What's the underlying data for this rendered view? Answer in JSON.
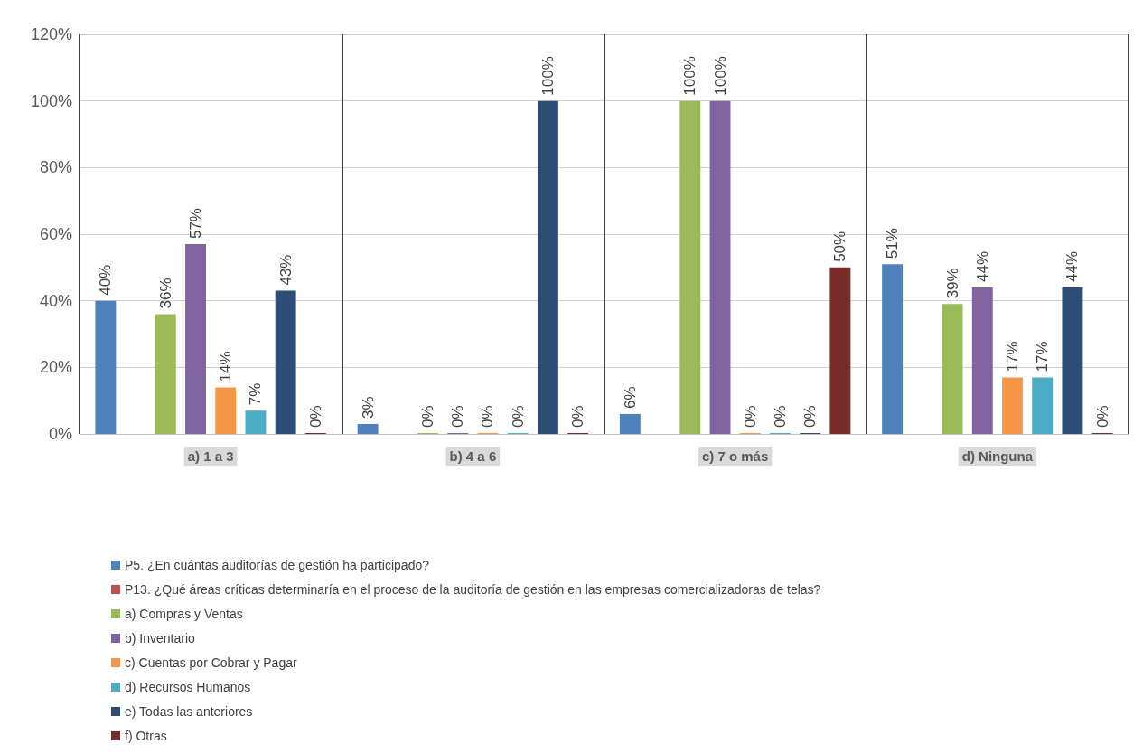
{
  "chart_data": {
    "type": "bar",
    "categories": [
      "a) 1 a 3",
      "b) 4 a 6",
      "c) 7 o más",
      "d) Ninguna"
    ],
    "ylim": [
      0,
      120
    ],
    "yticks": [
      {
        "value": 0,
        "label": "0%"
      },
      {
        "value": 20,
        "label": "20%"
      },
      {
        "value": 40,
        "label": "40%"
      },
      {
        "value": 60,
        "label": "60%"
      },
      {
        "value": 80,
        "label": "80%"
      },
      {
        "value": 100,
        "label": "100%"
      },
      {
        "value": 120,
        "label": "120%"
      }
    ],
    "grid": true,
    "legend": "bottom",
    "series": [
      {
        "name": "P5. ¿En cuántas auditorías de gestión ha participado?",
        "color": "#4f81bd",
        "values": [
          40,
          3,
          6,
          51
        ],
        "value_labels": [
          "40%",
          "3%",
          "6%",
          "51%"
        ]
      },
      {
        "name": "P13. ¿Qué áreas críticas determinaría en el proceso de la auditoría de gestión en las empresas comercializadoras de telas?",
        "color": "#c0504d",
        "values": [
          null,
          null,
          null,
          null
        ],
        "value_labels": [
          null,
          null,
          null,
          null
        ]
      },
      {
        "name": "a) Compras y Ventas",
        "color": "#9bbb59",
        "values": [
          36,
          0,
          100,
          39
        ],
        "value_labels": [
          "36%",
          "0%",
          "100%",
          "39%"
        ]
      },
      {
        "name": "b) Inventario",
        "color": "#8064a2",
        "values": [
          57,
          0,
          100,
          44
        ],
        "value_labels": [
          "57%",
          "0%",
          "100%",
          "44%"
        ]
      },
      {
        "name": "c) Cuentas por Cobrar y Pagar",
        "color": "#f79646",
        "values": [
          14,
          0,
          0,
          17
        ],
        "value_labels": [
          "14%",
          "0%",
          "0%",
          "17%"
        ]
      },
      {
        "name": "d) Recursos Humanos",
        "color": "#4bacc6",
        "values": [
          7,
          0,
          0,
          17
        ],
        "value_labels": [
          "7%",
          "0%",
          "0%",
          "17%"
        ]
      },
      {
        "name": "e) Todas las anteriores",
        "color": "#2c4d75",
        "values": [
          43,
          100,
          0,
          44
        ],
        "value_labels": [
          "43%",
          "100%",
          "0%",
          "44%"
        ]
      },
      {
        "name": "f) Otras",
        "color": "#772c2a",
        "values": [
          0,
          0,
          50,
          0
        ],
        "value_labels": [
          "0%",
          "0%",
          "50%",
          "0%"
        ]
      }
    ]
  }
}
